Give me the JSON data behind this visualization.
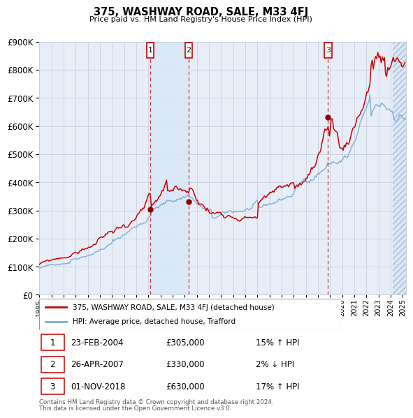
{
  "title": "375, WASHWAY ROAD, SALE, M33 4FJ",
  "subtitle": "Price paid vs. HM Land Registry's House Price Index (HPI)",
  "legend_line1": "375, WASHWAY ROAD, SALE, M33 4FJ (detached house)",
  "legend_line2": "HPI: Average price, detached house, Trafford",
  "footnote1": "Contains HM Land Registry data © Crown copyright and database right 2024.",
  "footnote2": "This data is licensed under the Open Government Licence v3.0.",
  "transactions": [
    {
      "num": 1,
      "date": "23-FEB-2004",
      "price": 305000,
      "pct": "15%",
      "dir": "↑"
    },
    {
      "num": 2,
      "date": "26-APR-2007",
      "price": 330000,
      "pct": "2%",
      "dir": "↓"
    },
    {
      "num": 3,
      "date": "01-NOV-2018",
      "price": 630000,
      "pct": "17%",
      "dir": "↑"
    }
  ],
  "sale_dates_year": [
    2004.15,
    2007.32,
    2018.84
  ],
  "sale_prices": [
    305000,
    330000,
    630000
  ],
  "ylim": [
    0,
    900000
  ],
  "yticks": [
    0,
    100000,
    200000,
    300000,
    400000,
    500000,
    600000,
    700000,
    800000,
    900000
  ],
  "xmin": 1995,
  "xmax": 2025.3,
  "bg_color": "#e8eef8",
  "grid_color": "#c8d0de",
  "red_line_color": "#cc0000",
  "blue_line_color": "#7aadd4",
  "marker_color": "#880000",
  "shade_color": "#d8e8f8",
  "dashed_color": "#cc3333",
  "hatch_color": "#c0c8d8",
  "box_edge_color": "#cc0000",
  "legend_edge_color": "#999999",
  "footnote_color": "#555555"
}
